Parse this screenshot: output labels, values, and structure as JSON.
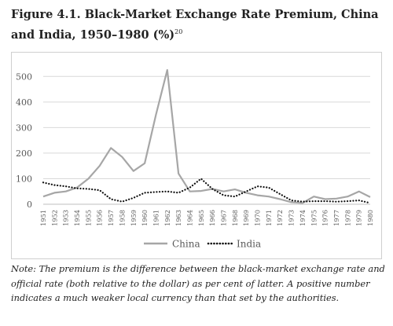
{
  "figure": {
    "title_main": "Figure 4.1. Black-Market Exchange Rate Premium, China and India, 1950–1980 (%)",
    "title_sup": "20",
    "note": "Note: The premium is the difference between the black-market exchange rate and official rate (both relative to the dollar) as per cent of latter. A positive number indicates a much weaker local currency than that set by the authorities."
  },
  "chart_data": {
    "type": "line",
    "title": "",
    "xlabel": "",
    "ylabel": "",
    "ylim": [
      0,
      550
    ],
    "yticks": [
      0,
      100,
      200,
      300,
      400,
      500
    ],
    "grid": "horizontal",
    "legend_position": "bottom",
    "categories": [
      "1951",
      "1952",
      "1953",
      "1954",
      "1955",
      "1956",
      "1957",
      "1958",
      "1959",
      "1960",
      "1961",
      "1962",
      "1963",
      "1964",
      "1965",
      "1966",
      "1967",
      "1968",
      "1969",
      "1970",
      "1971",
      "1972",
      "1973",
      "1974",
      "1975",
      "1976",
      "1977",
      "1978",
      "1979",
      "1980"
    ],
    "series": [
      {
        "name": "China",
        "style": "solid",
        "color": "#a6a6a6",
        "values": [
          30,
          45,
          50,
          65,
          100,
          150,
          220,
          185,
          130,
          160,
          350,
          525,
          120,
          50,
          52,
          60,
          50,
          58,
          45,
          35,
          30,
          20,
          8,
          5,
          30,
          20,
          22,
          30,
          50,
          28
        ]
      },
      {
        "name": "India",
        "style": "dotted",
        "color": "#111111",
        "values": [
          85,
          75,
          70,
          62,
          60,
          55,
          20,
          10,
          25,
          45,
          48,
          50,
          45,
          65,
          100,
          60,
          35,
          30,
          50,
          70,
          65,
          40,
          15,
          10,
          12,
          12,
          10,
          12,
          15,
          5
        ]
      }
    ]
  }
}
